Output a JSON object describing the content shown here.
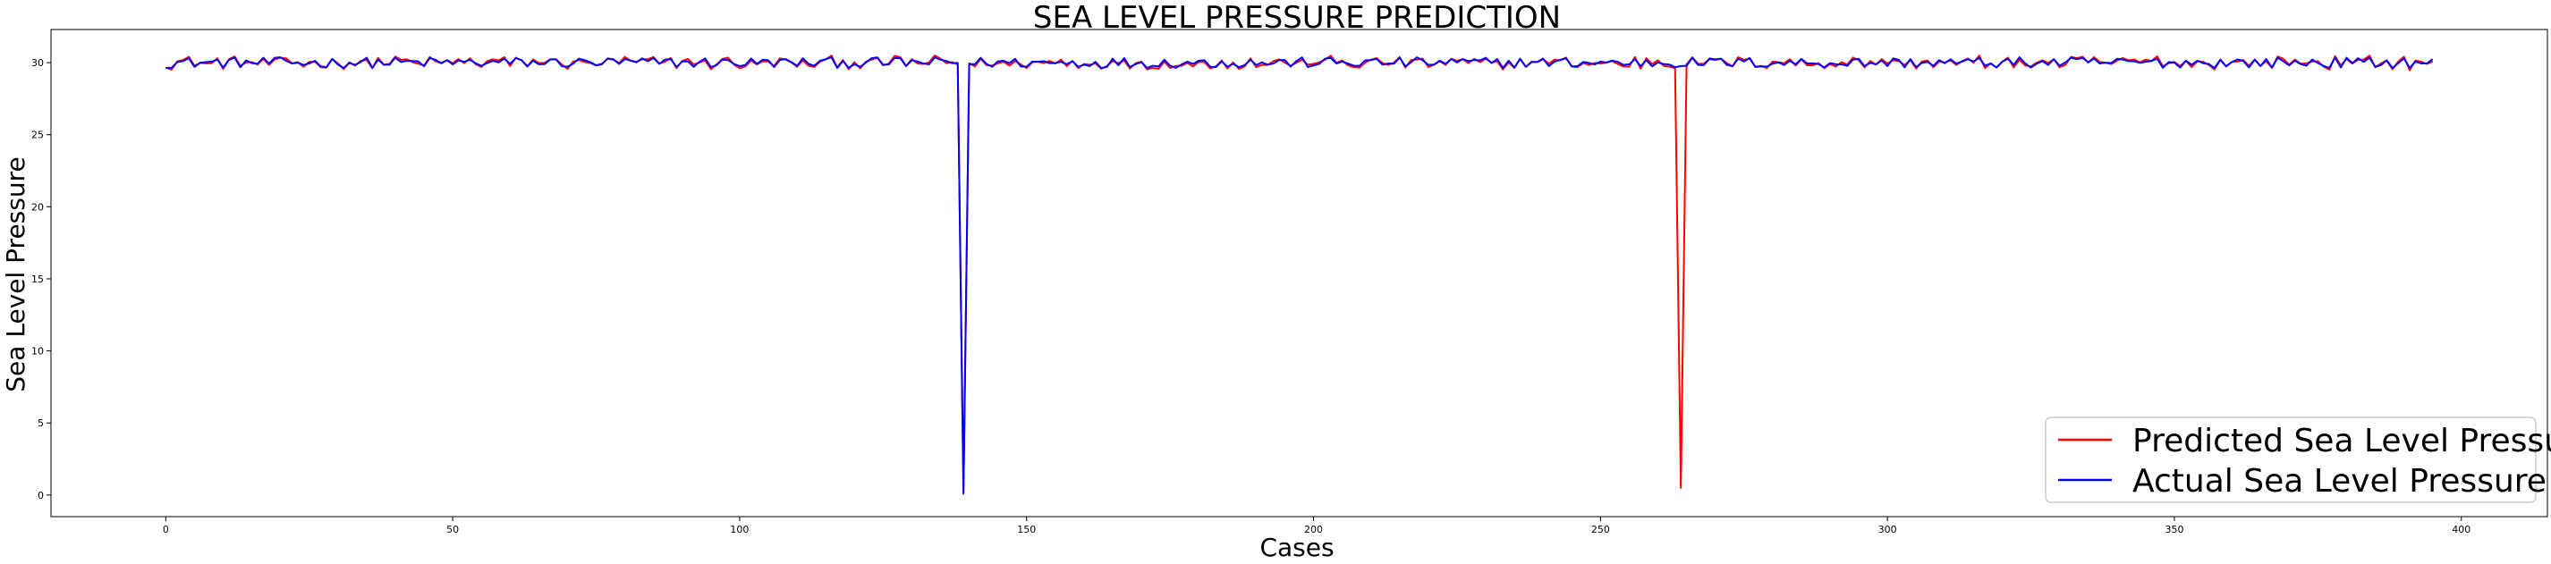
{
  "chart_data": {
    "type": "line",
    "title": "SEA LEVEL PRESSURE PREDICTION",
    "xlabel": "Cases",
    "ylabel": "Sea Level Pressure",
    "xlim": [
      -20,
      415
    ],
    "ylim": [
      -1.5,
      32.3
    ],
    "xticks": [
      0,
      50,
      100,
      150,
      200,
      250,
      300,
      350,
      400
    ],
    "yticks": [
      0,
      5,
      10,
      15,
      20,
      25,
      30
    ],
    "grid": false,
    "legend_position": "bottom-right",
    "n_points": 396,
    "series": [
      {
        "name": "Predicted Sea Level Pressure",
        "color": "#ff0000",
        "spikes": [
          [
            139,
            0.2
          ],
          [
            264,
            0.5
          ]
        ],
        "baseline": 29.98
      },
      {
        "name": "Actual Sea Level Pressure",
        "color": "#0000ff",
        "spikes": [
          [
            139,
            0.1
          ]
        ],
        "baseline": 30.0
      }
    ]
  }
}
